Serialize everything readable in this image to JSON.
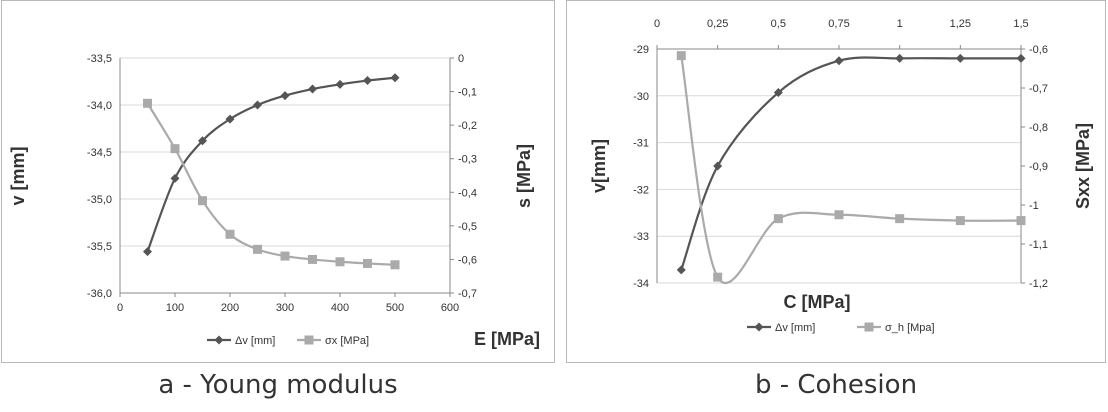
{
  "captions": {
    "a": "a - Young modulus",
    "b": "b - Cohesion"
  },
  "chart_data": [
    {
      "type": "line",
      "panel": "a",
      "x": [
        50,
        100,
        150,
        200,
        250,
        300,
        350,
        400,
        450,
        500
      ],
      "xlim": [
        0,
        600
      ],
      "xticks": [
        "0",
        "100",
        "200",
        "300",
        "400",
        "500",
        "600"
      ],
      "xlabel": "E [MPa]",
      "ylabel": "v [mm]",
      "ylim": [
        -36.0,
        -33.5
      ],
      "yticks": [
        "-36,0",
        "-35,5",
        "-35,0",
        "-34,5",
        "-34,0",
        "-33,5"
      ],
      "y2label": "s [MPa]",
      "y2lim": [
        -0.7,
        0
      ],
      "y2ticks": [
        "-0,7",
        "-0,6",
        "-0,5",
        "-0,4",
        "-0,3",
        "-0,2",
        "-0,1",
        "0"
      ],
      "grid": "horizontal",
      "legend_position": "bottom",
      "series": [
        {
          "name": "Δv [mm]",
          "axis": "left",
          "color": "#555555",
          "marker": "diamond",
          "values": [
            -35.56,
            -34.78,
            -34.38,
            -34.15,
            -34.0,
            -33.9,
            -33.83,
            -33.78,
            -33.74,
            -33.71
          ]
        },
        {
          "name": "σx [MPa]",
          "axis": "right",
          "color": "#aaaaaa",
          "marker": "square",
          "values": [
            -0.135,
            -0.27,
            -0.425,
            -0.525,
            -0.57,
            -0.59,
            -0.6,
            -0.607,
            -0.612,
            -0.616
          ]
        }
      ]
    },
    {
      "type": "line",
      "panel": "b",
      "x": [
        0.1,
        0.25,
        0.5,
        0.75,
        1.0,
        1.25,
        1.5
      ],
      "xlim": [
        0,
        1.5
      ],
      "xticks": [
        "0",
        "0,25",
        "0,5",
        "0,75",
        "1",
        "1,25",
        "1,5"
      ],
      "xlabel": "C [MPa]",
      "ylabel": "v[mm]",
      "ylim": [
        -34,
        -29
      ],
      "yticks": [
        "-34",
        "-33",
        "-32",
        "-31",
        "-30",
        "-29"
      ],
      "y2label": "Sxx [MPa]",
      "y2lim": [
        -1.2,
        -0.6
      ],
      "y2ticks": [
        "-1,2",
        "-1,1",
        "-1",
        "-0,9",
        "-0,8",
        "-0,7",
        "-0,6"
      ],
      "grid": "horizontal",
      "legend_position": "bottom",
      "series": [
        {
          "name": "Δv [mm]",
          "axis": "left",
          "color": "#555555",
          "marker": "diamond",
          "values": [
            -33.72,
            -31.5,
            -29.93,
            -29.25,
            -29.2,
            -29.2,
            -29.2
          ]
        },
        {
          "name": "σ_h [Mpa]",
          "axis": "right",
          "color": "#aaaaaa",
          "marker": "square",
          "values": [
            -0.617,
            -1.185,
            -1.035,
            -1.025,
            -1.035,
            -1.04,
            -1.04
          ]
        }
      ]
    }
  ]
}
